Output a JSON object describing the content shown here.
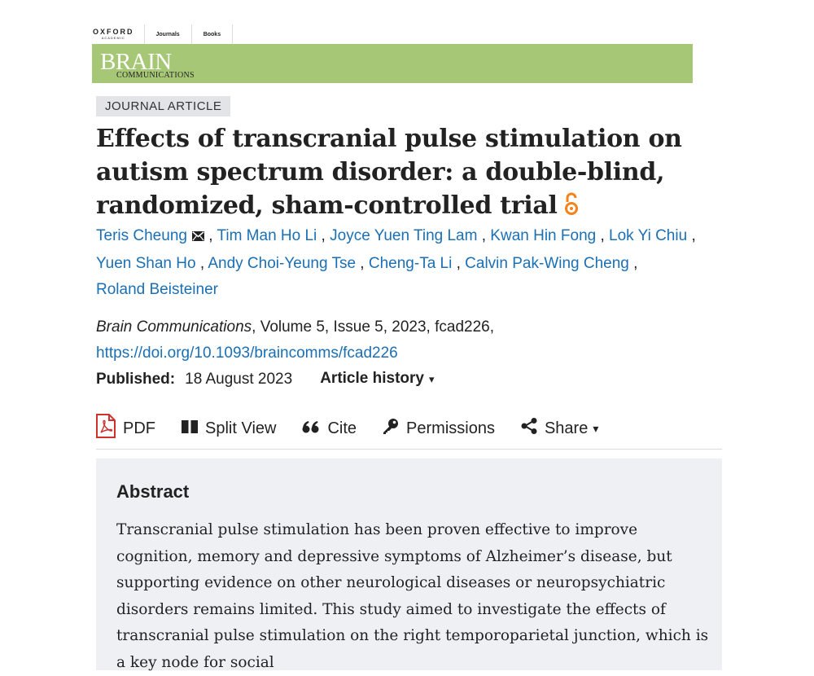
{
  "nav": {
    "brand_line1": "OXFORD",
    "brand_line2": "ACADEMIC",
    "links": [
      "Journals",
      "Books"
    ]
  },
  "banner": {
    "title": "BRAIN",
    "subtitle": "COMMUNICATIONS",
    "color": "#a6c775"
  },
  "article": {
    "type": "JOURNAL ARTICLE",
    "title": "Effects of transcranial pulse stimulation on autism spectrum disorder: a double-blind, randomized, sham-controlled trial",
    "open_access_icon": "open-access-icon",
    "authors": [
      "Teris Cheung",
      "Tim Man Ho Li",
      "Joyce Yuen Ting Lam",
      "Kwan Hin Fong",
      "Lok Yi Chiu",
      "Yuen Shan Ho",
      "Andy Choi-Yeung Tse",
      "Cheng-Ta Li",
      "Calvin Pak-Wing Cheng",
      "Roland Beisteiner"
    ],
    "corresponding_icon": "mail-icon",
    "citation": {
      "journal": "Brain Communications",
      "details": ", Volume 5, Issue 5, 2023, fcad226,",
      "doi": "https://doi.org/10.1093/braincomms/fcad226"
    },
    "published_label": "Published:",
    "published_date": "18 August 2023",
    "history_label": "Article history",
    "history_caret": "▾",
    "link_color": "#1a6fb5"
  },
  "toolbar": {
    "pdf": "PDF",
    "split_view": "Split View",
    "cite": "Cite",
    "permissions": "Permissions",
    "share": "Share",
    "share_caret": "▾"
  },
  "abstract": {
    "heading": "Abstract",
    "text": "Transcranial pulse stimulation has been proven effective to improve cognition, memory and depressive symptoms of Alzheimer’s disease, but supporting evidence on other neurological diseases or neuropsychiatric disorders remains limited. This study aimed to investigate the effects of transcranial pulse stimulation on the right temporoparietal junction, which is a key node for social"
  }
}
